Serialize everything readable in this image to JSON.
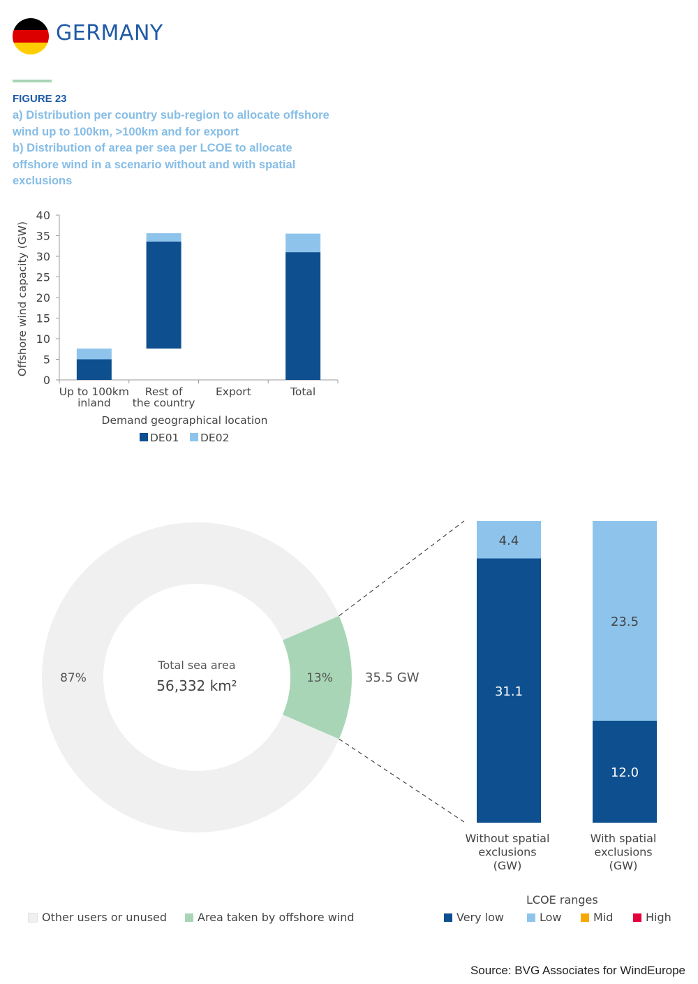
{
  "header": {
    "country": "GERMANY",
    "flag_colors": [
      "#000000",
      "#dd0000",
      "#ffce00"
    ],
    "figure_label": "FIGURE 23",
    "figure_title_lines": [
      "a) Distribution per country sub-region to allocate offshore",
      "wind up to 100km, >100km and for export",
      "b) Distribution of area per sea per LCOE to allocate",
      "offshore wind in a scenario without and with spatial",
      "exclusions"
    ]
  },
  "chart_data": [
    {
      "type": "bar",
      "subtype": "waterfall-stacked",
      "categories": [
        "Up to 100km inland",
        "Rest of the country",
        "Export",
        "Total"
      ],
      "category_label_lines": [
        [
          "Up to 100km",
          "inland"
        ],
        [
          "Rest of",
          "the country"
        ],
        [
          "Export"
        ],
        [
          "Total"
        ]
      ],
      "series": [
        {
          "name": "DE01",
          "color": "#0d4f8f",
          "values": [
            5.0,
            26.0,
            0,
            31.0
          ]
        },
        {
          "name": "DE02",
          "color": "#8ec4ec",
          "values": [
            2.6,
            2.0,
            0,
            4.5
          ]
        }
      ],
      "bar_base": [
        0,
        7.6,
        0,
        0
      ],
      "ylabel": "Offshore wind capacity (GW)",
      "xlabel": "Demand geographical location",
      "ylim": [
        0,
        40
      ],
      "yticks": [
        0,
        5,
        10,
        15,
        20,
        25,
        30,
        35,
        40
      ],
      "legend_position": "bottom"
    },
    {
      "type": "pie",
      "subtype": "donut",
      "center_title": "Total sea area",
      "center_value": "56,332 km²",
      "slices": [
        {
          "name": "Other users or unused",
          "value": 87,
          "label": "87%",
          "color": "#f0f0f0"
        },
        {
          "name": "Area taken by offshore wind",
          "value": 13,
          "label": "13%",
          "color": "#a8d5b5"
        }
      ],
      "callout": "35.5 GW",
      "legend_position": "bottom-left"
    },
    {
      "type": "bar",
      "subtype": "stacked",
      "categories": [
        "Without spatial exclusions (GW)",
        "With spatial exclusions (GW)"
      ],
      "category_label_lines": [
        [
          "Without spatial",
          "exclusions",
          "(GW)"
        ],
        [
          "With spatial",
          "exclusions",
          "(GW)"
        ]
      ],
      "series": [
        {
          "name": "Very low",
          "color": "#0d4f8f",
          "values": [
            31.1,
            12.0
          ],
          "labels": [
            "31.1",
            "12.0"
          ]
        },
        {
          "name": "Low",
          "color": "#8ec4ec",
          "values": [
            4.4,
            23.5
          ],
          "labels": [
            "4.4",
            "23.5"
          ]
        },
        {
          "name": "Mid",
          "color": "#f5a800",
          "values": [
            0,
            0
          ]
        },
        {
          "name": "High",
          "color": "#e4003b",
          "values": [
            0,
            0
          ]
        }
      ],
      "legend_title": "LCOE ranges",
      "legend_position": "bottom-right"
    }
  ],
  "source": "Source: BVG Associates for WindEurope"
}
